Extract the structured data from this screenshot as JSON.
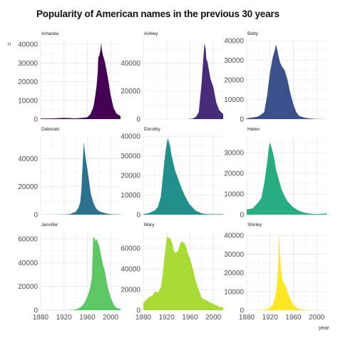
{
  "chart_data": {
    "type": "area",
    "title": "Popularity of American names in the previous 30 years",
    "xlabel": "year",
    "ylabel": "n",
    "xlim": [
      1880,
      2017
    ],
    "x_ticks": [
      1880,
      1920,
      1960,
      2000
    ],
    "x_tick_labels": [
      "1880",
      "1920",
      "1960",
      "2000"
    ],
    "layout": "3x3 facets, shared x axis, free y axes",
    "grid": true,
    "panels": [
      {
        "name": "Amanda",
        "color": "#440154",
        "ylim": [
          0,
          42000
        ],
        "y_ticks": [
          0,
          10000,
          20000,
          30000,
          40000
        ],
        "y_tick_labels": [
          "0",
          "10000",
          "20000",
          "30000",
          "40000"
        ],
        "x": [
          1880,
          1900,
          1920,
          1940,
          1950,
          1955,
          1960,
          1965,
          1970,
          1972,
          1974,
          1976,
          1978,
          1979,
          1980,
          1981,
          1982,
          1983,
          1984,
          1985,
          1987,
          1990,
          1993,
          1996,
          2000,
          2005,
          2010,
          2017
        ],
        "y": [
          250,
          350,
          700,
          400,
          600,
          800,
          1000,
          2500,
          6000,
          9000,
          13000,
          18000,
          25000,
          34000,
          33000,
          34500,
          36000,
          38000,
          41000,
          37000,
          34000,
          31000,
          26000,
          21000,
          13000,
          6000,
          3000,
          1600
        ]
      },
      {
        "name": "Ashley",
        "color": "#472c7a",
        "ylim": [
          0,
          56000
        ],
        "y_ticks": [
          0,
          20000,
          40000
        ],
        "y_tick_labels": [
          "0",
          "20000",
          "40000"
        ],
        "x": [
          1880,
          1940,
          1955,
          1964,
          1970,
          1975,
          1980,
          1983,
          1985,
          1987,
          1988,
          1990,
          1993,
          1995,
          2000,
          2005,
          2010,
          2017
        ],
        "y": [
          0,
          0,
          10,
          300,
          1500,
          5000,
          26000,
          44000,
          54000,
          50000,
          43000,
          41000,
          34000,
          29000,
          23000,
          12000,
          6500,
          3500
        ]
      },
      {
        "name": "Betty",
        "color": "#3b518b",
        "ylim": [
          0,
          40000
        ],
        "y_ticks": [
          0,
          10000,
          20000,
          30000,
          40000
        ],
        "y_tick_labels": [
          "0",
          "10000",
          "20000",
          "30000",
          "40000"
        ],
        "x": [
          1880,
          1890,
          1900,
          1910,
          1915,
          1920,
          1925,
          1928,
          1930,
          1932,
          1934,
          1937,
          1940,
          1945,
          1950,
          1955,
          1960,
          1965,
          1970,
          1980,
          1990,
          2000,
          2017
        ],
        "y": [
          400,
          800,
          1400,
          3500,
          12000,
          24000,
          32000,
          35000,
          38000,
          36000,
          33000,
          29000,
          27000,
          25000,
          20000,
          13000,
          7500,
          3500,
          1600,
          700,
          300,
          100,
          0
        ]
      },
      {
        "name": "Deborah",
        "color": "#2c718e",
        "ylim": [
          0,
          56000
        ],
        "y_ticks": [
          0,
          20000,
          40000
        ],
        "y_tick_labels": [
          "0",
          "20000",
          "40000"
        ],
        "x": [
          1880,
          1920,
          1930,
          1940,
          1945,
          1948,
          1950,
          1952,
          1954,
          1955,
          1956,
          1958,
          1960,
          1963,
          1966,
          1970,
          1975,
          1980,
          1990,
          2000,
          2017
        ],
        "y": [
          0,
          100,
          400,
          2000,
          5000,
          9000,
          18000,
          36000,
          52000,
          48000,
          44000,
          38000,
          33000,
          24000,
          15000,
          9000,
          4500,
          2500,
          1000,
          300,
          100
        ]
      },
      {
        "name": "Dorothy",
        "color": "#21908d",
        "ylim": [
          0,
          40000
        ],
        "y_ticks": [
          0,
          10000,
          20000,
          30000,
          40000
        ],
        "y_tick_labels": [
          "0",
          "10000",
          "20000",
          "30000",
          "40000"
        ],
        "x": [
          1880,
          1890,
          1900,
          1905,
          1910,
          1915,
          1918,
          1920,
          1922,
          1924,
          1926,
          1928,
          1930,
          1935,
          1940,
          1945,
          1950,
          1955,
          1960,
          1970,
          1980,
          1990,
          2017
        ],
        "y": [
          300,
          800,
          2200,
          4000,
          9000,
          24000,
          32000,
          36000,
          39000,
          37000,
          35000,
          31000,
          28000,
          22000,
          18000,
          14000,
          10500,
          7500,
          5000,
          2000,
          700,
          300,
          200
        ]
      },
      {
        "name": "Helen",
        "color": "#27ad81",
        "ylim": [
          0,
          38000
        ],
        "y_ticks": [
          0,
          10000,
          20000,
          30000
        ],
        "y_tick_labels": [
          "0",
          "10000",
          "20000",
          "30000"
        ],
        "x": [
          1880,
          1890,
          1900,
          1905,
          1910,
          1915,
          1918,
          1920,
          1922,
          1925,
          1928,
          1930,
          1935,
          1940,
          1945,
          1950,
          1960,
          1970,
          1980,
          1990,
          2000,
          2010,
          2017
        ],
        "y": [
          2500,
          3000,
          6000,
          8000,
          15000,
          25000,
          33000,
          35000,
          33000,
          30000,
          26000,
          22000,
          17000,
          12000,
          9000,
          6500,
          3500,
          1800,
          900,
          500,
          300,
          400,
          600
        ]
      },
      {
        "name": "Jennifer",
        "color": "#5cc863",
        "ylim": [
          0,
          66000
        ],
        "y_ticks": [
          0,
          20000,
          40000,
          60000
        ],
        "y_tick_labels": [
          "0",
          "20000",
          "40000",
          "60000"
        ],
        "x": [
          1880,
          1930,
          1940,
          1945,
          1950,
          1955,
          1958,
          1962,
          1965,
          1968,
          1970,
          1972,
          1974,
          1976,
          1978,
          1980,
          1983,
          1986,
          1990,
          1995,
          2000,
          2005,
          2010,
          2017
        ],
        "y": [
          0,
          100,
          600,
          1500,
          3000,
          6000,
          9000,
          14000,
          19000,
          28000,
          60000,
          62000,
          58000,
          60000,
          57000,
          55000,
          48000,
          40000,
          33000,
          20000,
          11000,
          5000,
          2000,
          1000
        ]
      },
      {
        "name": "Mary",
        "color": "#a8db34",
        "ylim": [
          0,
          76000
        ],
        "y_ticks": [
          0,
          20000,
          40000,
          60000
        ],
        "y_tick_labels": [
          "0",
          "20000",
          "40000",
          "60000"
        ],
        "x": [
          1880,
          1885,
          1890,
          1895,
          1900,
          1905,
          1910,
          1913,
          1916,
          1918,
          1921,
          1923,
          1926,
          1930,
          1933,
          1936,
          1940,
          1943,
          1946,
          1948,
          1950,
          1953,
          1957,
          1960,
          1965,
          1970,
          1975,
          1980,
          1990,
          2000,
          2010,
          2017
        ],
        "y": [
          7000,
          10000,
          13000,
          14000,
          18000,
          17000,
          22000,
          33000,
          50000,
          60000,
          72000,
          70000,
          70000,
          64000,
          56000,
          56000,
          58000,
          64000,
          67000,
          65000,
          66000,
          62000,
          54000,
          50000,
          40000,
          28000,
          20000,
          12000,
          9000,
          6000,
          3500,
          2500
        ]
      },
      {
        "name": "Shirley",
        "color": "#fde725",
        "ylim": [
          0,
          42000
        ],
        "y_ticks": [
          0,
          10000,
          20000,
          30000,
          40000
        ],
        "y_tick_labels": [
          "0",
          "10000",
          "20000",
          "30000",
          "40000"
        ],
        "x": [
          1880,
          1900,
          1910,
          1920,
          1925,
          1928,
          1930,
          1932,
          1934,
          1935,
          1936,
          1937,
          1939,
          1941,
          1943,
          1945,
          1948,
          1950,
          1955,
          1960,
          1965,
          1970,
          1980,
          1990,
          2017
        ],
        "y": [
          0,
          50,
          300,
          1200,
          3000,
          6000,
          9000,
          14000,
          24000,
          37000,
          40000,
          30000,
          21000,
          16000,
          15000,
          14000,
          12000,
          10000,
          6000,
          3000,
          1500,
          800,
          300,
          100,
          0
        ]
      }
    ]
  }
}
